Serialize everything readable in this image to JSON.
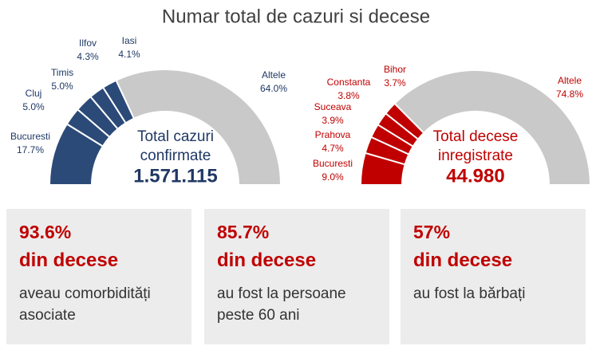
{
  "title": "Numar total de cazuri si decese",
  "chart_data": [
    {
      "type": "half-donut",
      "categories": [
        "Bucuresti",
        "Cluj",
        "Timis",
        "Ilfov",
        "Iasi",
        "Altele"
      ],
      "values": [
        17.7,
        5.0,
        5.0,
        4.3,
        4.1,
        64.0
      ],
      "value_labels": [
        "17.7%",
        "5.0%",
        "5.0%",
        "4.3%",
        "4.1%",
        "64.0%"
      ],
      "colors": [
        "#2b4a78",
        "#2b4a78",
        "#2b4a78",
        "#2b4a78",
        "#2b4a78",
        "#c9c9c9"
      ],
      "label_color": "#1f3864",
      "center_label": [
        "Total cazuri",
        "confirmate"
      ],
      "center_value": "1.571.115"
    },
    {
      "type": "half-donut",
      "categories": [
        "Bucuresti",
        "Prahova",
        "Suceava",
        "Constanta",
        "Bihor",
        "Altele"
      ],
      "values": [
        9.0,
        4.7,
        3.9,
        3.8,
        3.7,
        74.8
      ],
      "value_labels": [
        "9.0%",
        "4.7%",
        "3.9%",
        "3.8%",
        "3.7%",
        "74.8%"
      ],
      "colors": [
        "#c00000",
        "#c00000",
        "#c00000",
        "#c00000",
        "#c00000",
        "#c9c9c9"
      ],
      "label_color": "#c00000",
      "center_label": [
        "Total decese",
        "inregistrate"
      ],
      "center_value": "44.980"
    }
  ],
  "cards": [
    {
      "value": "93.6%",
      "label": "din decese",
      "text": "aveau comorbidități asociate"
    },
    {
      "value": "85.7%",
      "label": "din decese",
      "text": "au fost la persoane peste 60 ani"
    },
    {
      "value": "57%",
      "label": "din decese",
      "text": "au fost la bărbați"
    }
  ]
}
